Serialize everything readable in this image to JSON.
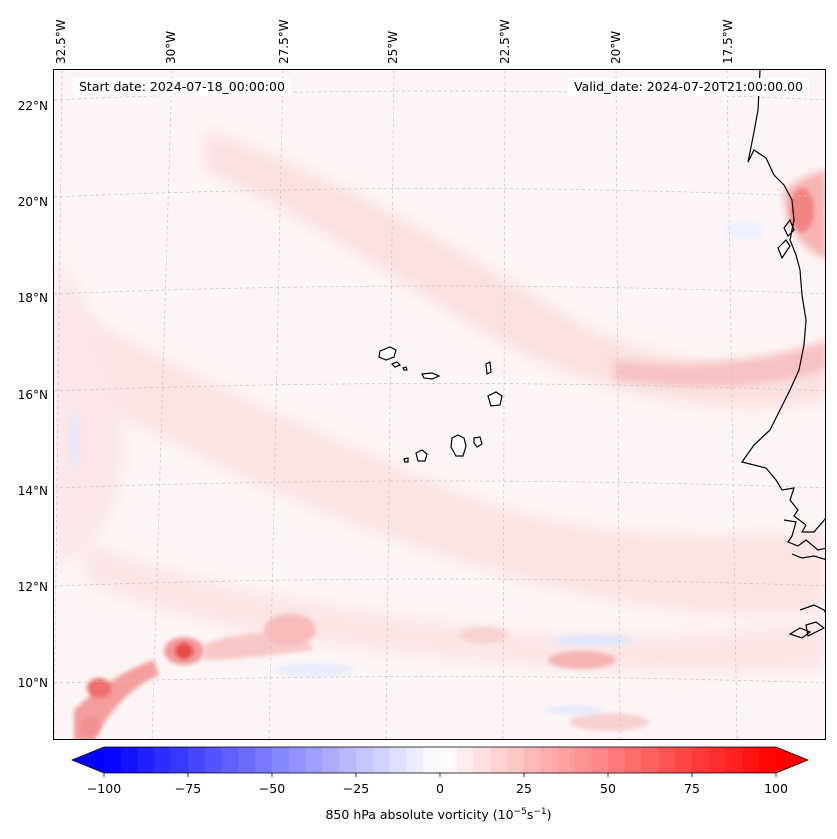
{
  "map": {
    "start_date_label": "Start date: 2024-07-18_00:00:00",
    "valid_date_label": "Valid_date: 2024-07-20T21:00:00.00",
    "lon_labels": [
      "32.5°W",
      "30°W",
      "27.5°W",
      "25°W",
      "22.5°W",
      "20°W",
      "17.5°W"
    ],
    "lat_labels": [
      "22°N",
      "20°N",
      "18°N",
      "16°N",
      "14°N",
      "12°N",
      "10°N"
    ],
    "colors": {
      "coastline": "#000000",
      "grid": "#b8b8b8",
      "frame": "#000000"
    }
  },
  "colorbar": {
    "tick_labels": [
      "−100",
      "−75",
      "−50",
      "−25",
      "0",
      "25",
      "50",
      "75",
      "100"
    ],
    "label_prefix": "850 hPa absolute vorticity (10",
    "label_exp1": "−5",
    "label_mid": "s",
    "label_exp2": "−1",
    "label_suffix": ")",
    "vmin": -100,
    "vmax": 100,
    "colors": {
      "min": "#0000ff",
      "mid": "#ffffff",
      "max": "#ff0000"
    }
  }
}
